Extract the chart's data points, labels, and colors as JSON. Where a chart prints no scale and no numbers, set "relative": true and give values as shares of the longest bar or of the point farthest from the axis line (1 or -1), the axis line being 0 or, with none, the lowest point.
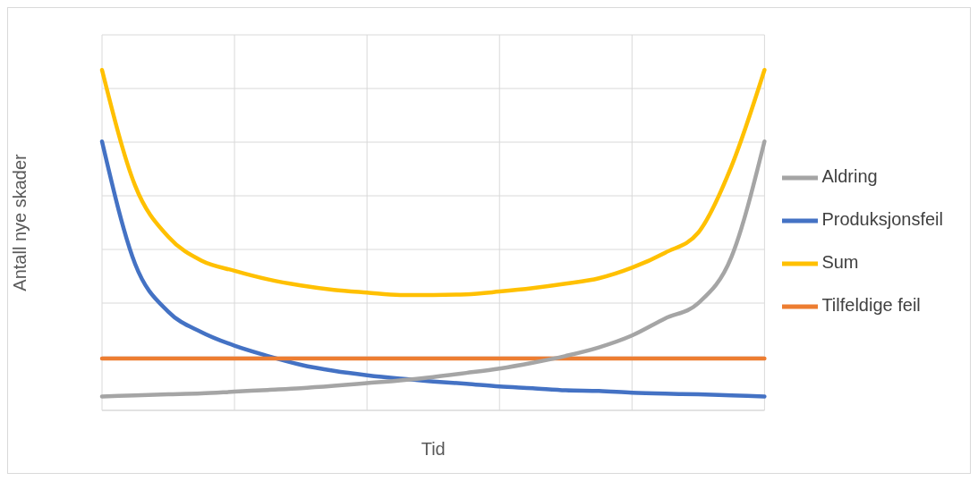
{
  "chart_data": {
    "type": "line",
    "relative": true,
    "xlabel": "Tid",
    "ylabel": "Antall nye skader",
    "grid": true,
    "legend": "right",
    "marker": "none",
    "line_style": "solid",
    "categories": [
      null,
      null,
      null,
      null,
      null,
      null,
      null,
      null,
      null,
      null,
      null,
      null,
      null,
      null,
      null,
      null,
      null,
      null,
      null,
      null,
      null
    ],
    "series": [
      {
        "name": "Produksjonsfeil",
        "color": "#4472c4",
        "values": [
          0.79,
          0.43,
          0.29,
          0.23,
          0.19,
          0.16,
          0.134,
          0.116,
          0.103,
          0.093,
          0.085,
          0.078,
          0.07,
          0.065,
          0.059,
          0.057,
          0.052,
          0.049,
          0.047,
          0.044,
          0.041
        ]
      },
      {
        "name": "Tilfeldige feil",
        "color": "#ed7d31",
        "values": [
          0.152,
          0.152,
          0.152,
          0.152,
          0.152,
          0.152,
          0.152,
          0.152,
          0.152,
          0.152,
          0.152,
          0.152,
          0.152,
          0.152,
          0.152,
          0.152,
          0.152,
          0.152,
          0.152,
          0.152,
          0.152
        ]
      },
      {
        "name": "Aldring",
        "color": "#a5a5a5",
        "values": [
          0.041,
          0.044,
          0.047,
          0.05,
          0.055,
          0.06,
          0.065,
          0.072,
          0.08,
          0.088,
          0.098,
          0.11,
          0.123,
          0.14,
          0.16,
          0.185,
          0.22,
          0.27,
          0.315,
          0.45,
          0.79
        ]
      },
      {
        "name": "Sum",
        "color": "#ffc000",
        "values": [
          1.0,
          0.66,
          0.51,
          0.44,
          0.41,
          0.385,
          0.367,
          0.354,
          0.346,
          0.339,
          0.339,
          0.341,
          0.349,
          0.359,
          0.372,
          0.388,
          0.419,
          0.463,
          0.522,
          0.716,
          1.0
        ]
      }
    ]
  }
}
